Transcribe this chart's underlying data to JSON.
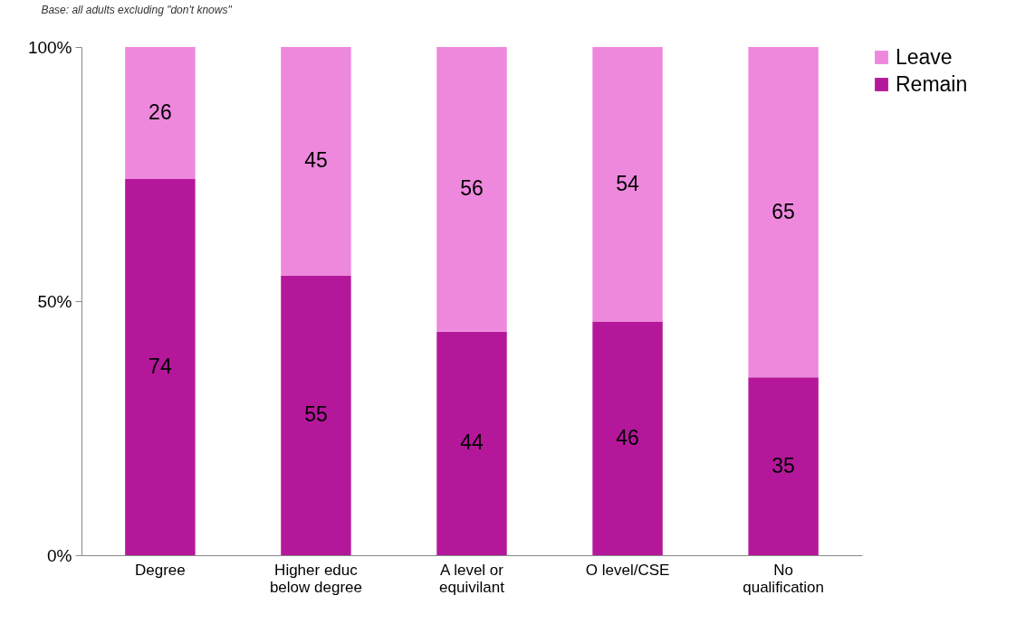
{
  "chart_data": {
    "type": "bar",
    "stacked": true,
    "annotations": [
      "Base: all adults excluding \"don't knows\""
    ],
    "categories": [
      "Degree",
      "Higher educ below degree",
      "A level or equivilant",
      "O level/CSE",
      "No qualification"
    ],
    "series": [
      {
        "name": "Remain",
        "color": "#b5179b",
        "values": [
          74,
          55,
          44,
          46,
          35
        ]
      },
      {
        "name": "Leave",
        "color": "#ee88dd",
        "values": [
          26,
          45,
          56,
          54,
          65
        ]
      }
    ],
    "ylim": [
      0,
      100
    ],
    "yticks": [
      {
        "value": 0,
        "label": "0%"
      },
      {
        "value": 50,
        "label": "50%"
      },
      {
        "value": 100,
        "label": "100%"
      }
    ],
    "data_labels": true,
    "legend": "right",
    "grid": false
  }
}
